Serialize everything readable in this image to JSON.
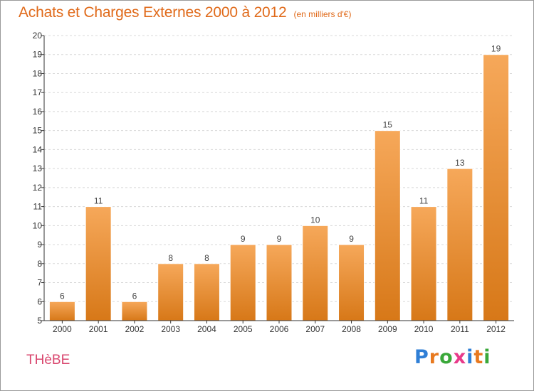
{
  "header": {
    "title": "Achats et Charges Externes 2000 à 2012",
    "unit": "(en milliers d'€)"
  },
  "footer": {
    "city": "THèBE",
    "brand_letters": [
      "P",
      "r",
      "o",
      "x",
      "i",
      "t",
      "i"
    ],
    "brand_colors": [
      "#2f7fd6",
      "#e8791f",
      "#3aa83a",
      "#e83a8a",
      "#2f7fd6",
      "#e8791f",
      "#3aa83a"
    ]
  },
  "colors": {
    "bar_top": "#f6a85a",
    "bar_bottom": "#d77818",
    "bar_edge": "#ffffff",
    "axis": "#333333",
    "grid": "#d8d8d8"
  },
  "chart_data": {
    "type": "bar",
    "categories": [
      "2000",
      "2001",
      "2002",
      "2003",
      "2004",
      "2005",
      "2006",
      "2007",
      "2008",
      "2009",
      "2010",
      "2011",
      "2012"
    ],
    "values": [
      6,
      11,
      6,
      8,
      8,
      9,
      9,
      10,
      9,
      15,
      11,
      13,
      19
    ],
    "data_labels": [
      "6",
      "11",
      "6",
      "8",
      "8",
      "9",
      "9",
      "10",
      "9",
      "15",
      "11",
      "13",
      "19"
    ],
    "title": "Achats et Charges Externes 2000 à 2012",
    "xlabel": "",
    "ylabel": "",
    "ylim": [
      5,
      20
    ],
    "yticks": [
      "5",
      "6",
      "7",
      "8",
      "9",
      "10",
      "11",
      "12",
      "13",
      "14",
      "15",
      "16",
      "17",
      "18",
      "19",
      "20"
    ],
    "grid": true,
    "legend": "none"
  }
}
